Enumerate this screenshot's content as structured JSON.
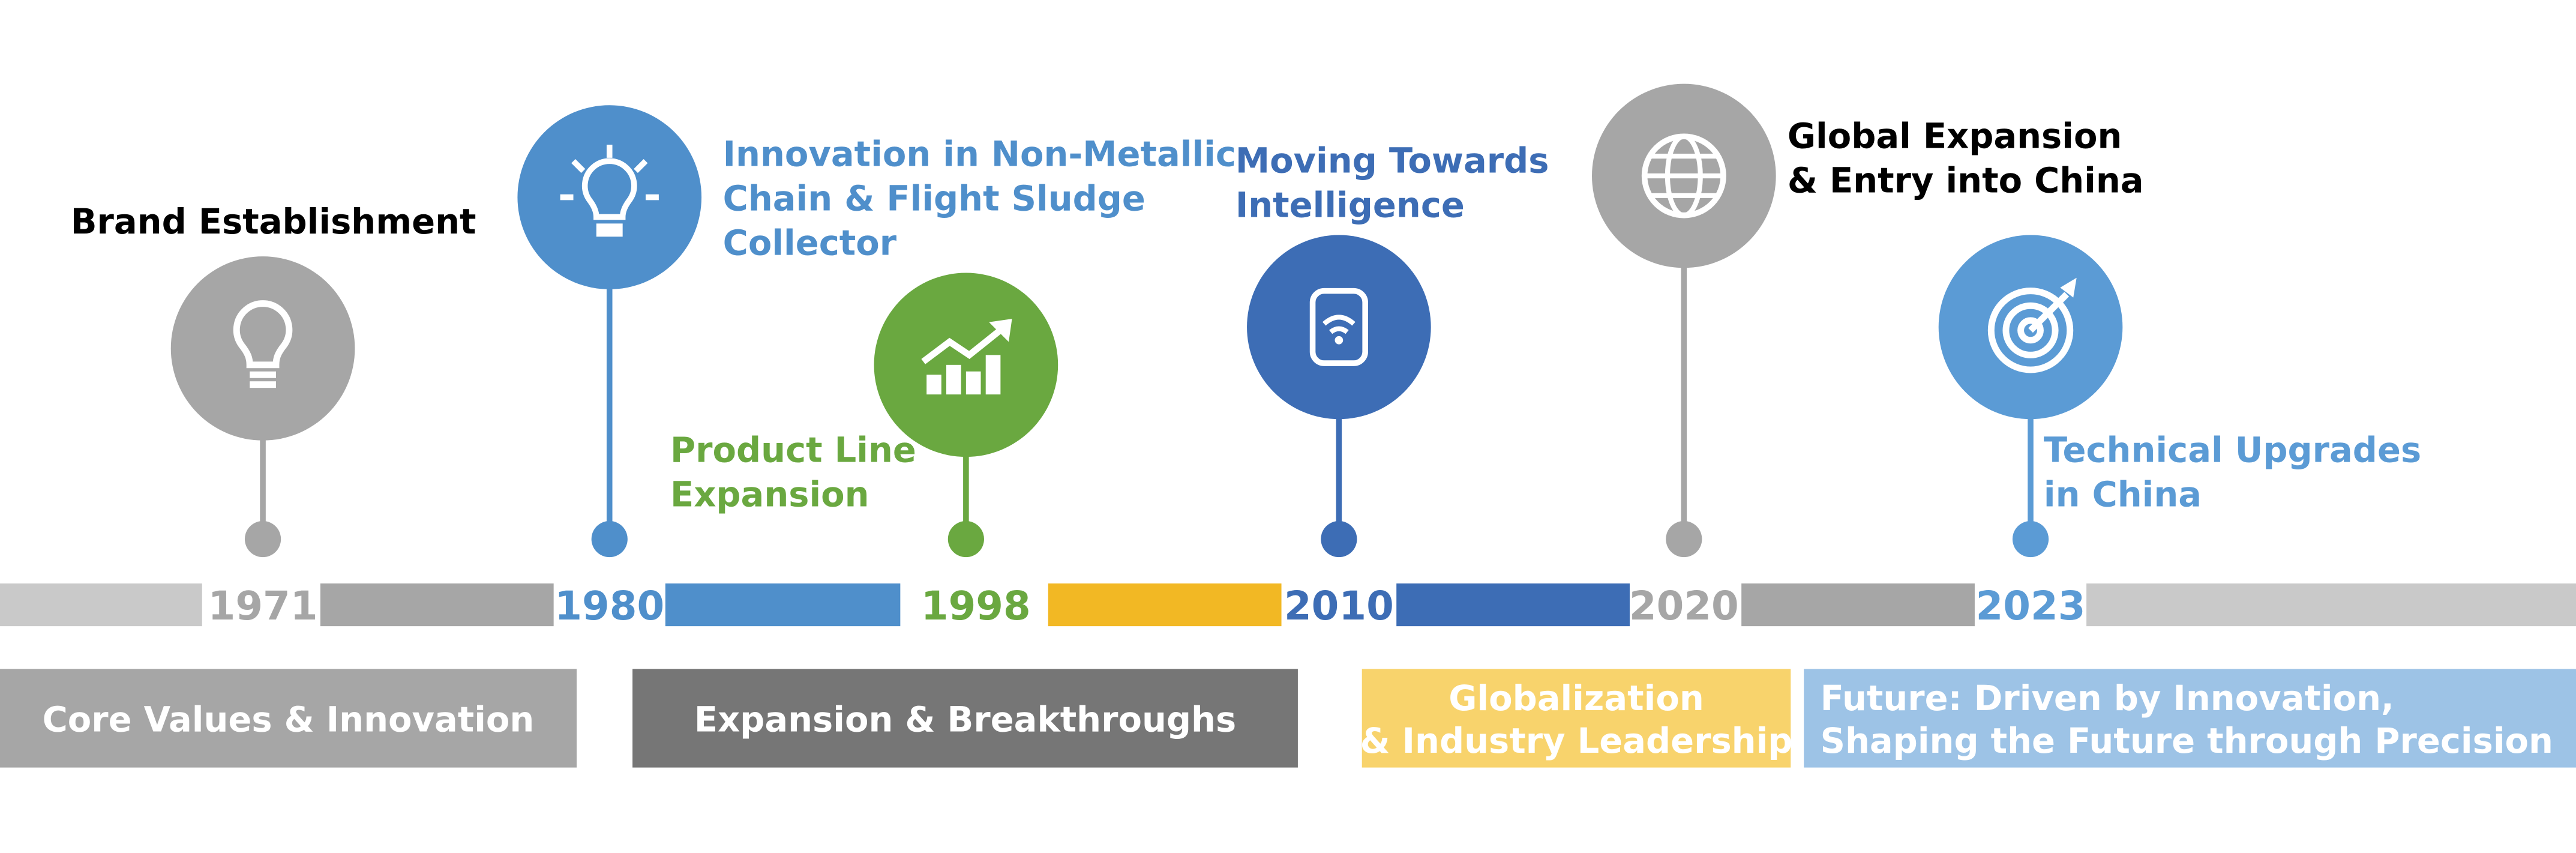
{
  "milestones": [
    {
      "year": "1971",
      "title": [
        "Brand Establishment"
      ],
      "color": "#a6a6a6",
      "title_color": "#000000"
    },
    {
      "year": "1980",
      "title": [
        "Innovation in Non-Metallic",
        "Chain & Flight Sludge",
        "Collector"
      ],
      "color": "#4f8fcb",
      "title_color": "#4f8fcb"
    },
    {
      "year": "1998",
      "title": [
        "Product Line",
        "Expansion"
      ],
      "color": "#6aa840",
      "title_color": "#6aa840"
    },
    {
      "year": "2010",
      "title": [
        "Moving Towards",
        "Intelligence"
      ],
      "color": "#3d6db5",
      "title_color": "#3d6db5"
    },
    {
      "year": "2020",
      "title": [
        "Global Expansion",
        "& Entry into China"
      ],
      "color": "#a6a6a6",
      "title_color": "#000000"
    },
    {
      "year": "2023",
      "title": [
        "Technical Upgrades",
        "in China"
      ],
      "color": "#5b9bd5",
      "title_color": "#5b9bd5"
    }
  ],
  "phases": [
    {
      "label": [
        "Core Values & Innovation"
      ],
      "color": "#a6a6a6"
    },
    {
      "label": [
        "Expansion & Breakthroughs"
      ],
      "color": "#767676"
    },
    {
      "label": [
        "Globalization",
        "& Industry Leadership"
      ],
      "color": "#f8d36c"
    },
    {
      "label": [
        "Future: Driven by Innovation,",
        "Shaping the Future through Precision"
      ],
      "color": "#9dc3e6"
    }
  ]
}
